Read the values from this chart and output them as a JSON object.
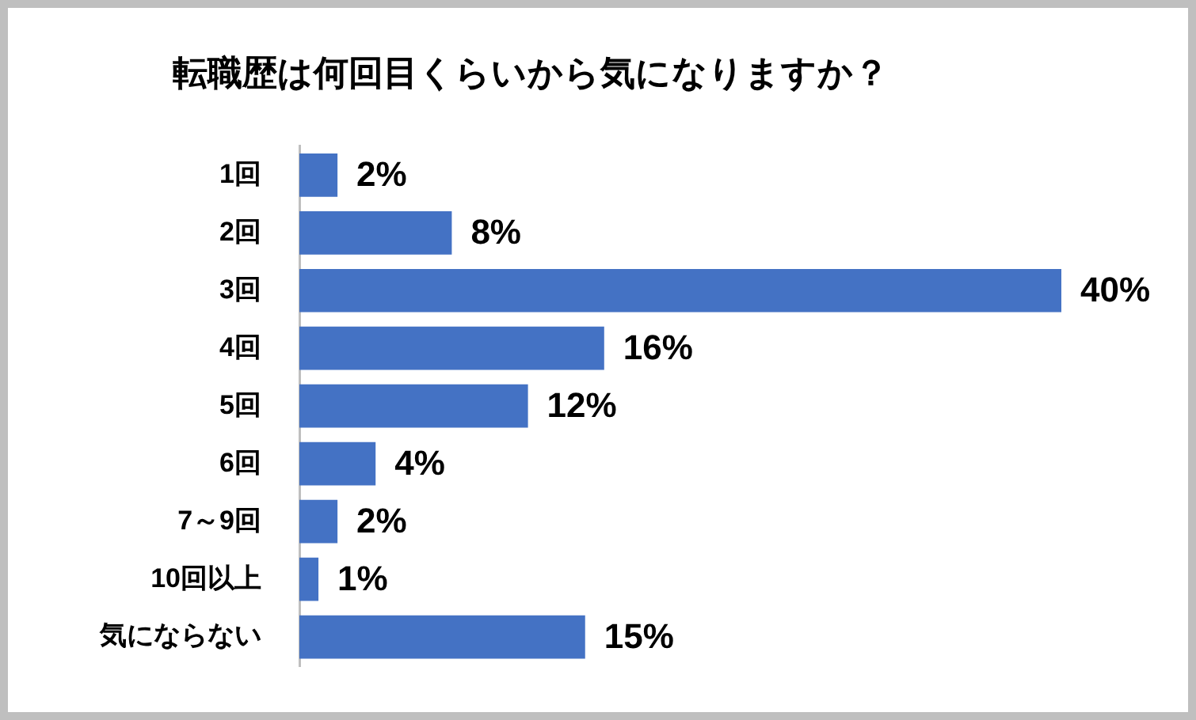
{
  "chart_data": {
    "type": "bar",
    "orientation": "horizontal",
    "title": "転職歴は何回目くらいから気になりますか？",
    "categories": [
      "1回",
      "2回",
      "3回",
      "4回",
      "5回",
      "6回",
      "7～9回",
      "10回以上",
      "気にならない"
    ],
    "values": [
      2,
      8,
      40,
      16,
      12,
      4,
      2,
      1,
      15
    ],
    "value_labels": [
      "2%",
      "8%",
      "40%",
      "16%",
      "12%",
      "4%",
      "2%",
      "1%",
      "15%"
    ],
    "color": "#4472c4",
    "tick_labels": "y"
  }
}
